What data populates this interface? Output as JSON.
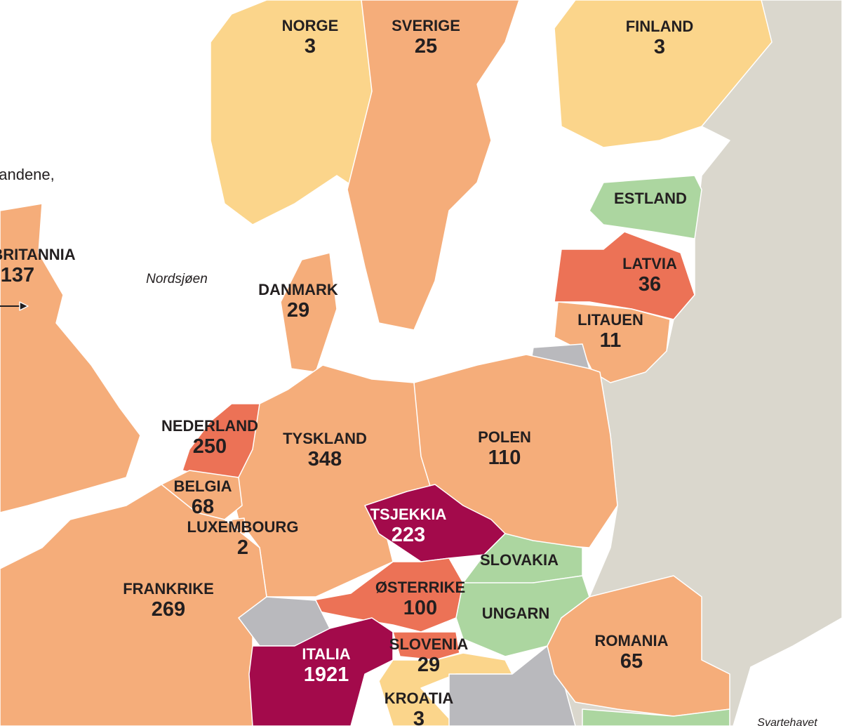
{
  "side_text": "andene,",
  "seas": {
    "north_sea": "Nordsjøen",
    "black_sea": "Svartehavet"
  },
  "countries": [
    {
      "name": "NORGE",
      "value": "3"
    },
    {
      "name": "SVERIGE",
      "value": "25"
    },
    {
      "name": "FINLAND",
      "value": "3"
    },
    {
      "name": "ESTLAND"
    },
    {
      "name": "LATVIA",
      "value": "36"
    },
    {
      "name": "LITAUEN",
      "value": "11"
    },
    {
      "name": "BRITANNIA",
      "value": "137"
    },
    {
      "name": "DANMARK",
      "value": "29"
    },
    {
      "name": "NEDERLAND",
      "value": "250"
    },
    {
      "name": "TYSKLAND",
      "value": "348"
    },
    {
      "name": "POLEN",
      "value": "110"
    },
    {
      "name": "BELGIA",
      "value": "68"
    },
    {
      "name": "LUXEMBOURG",
      "value": "2"
    },
    {
      "name": "TSJEKKIA",
      "value": "223"
    },
    {
      "name": "SLOVAKIA"
    },
    {
      "name": "ØSTERRIKE",
      "value": "100"
    },
    {
      "name": "UNGARN"
    },
    {
      "name": "FRANKRIKE",
      "value": "269"
    },
    {
      "name": "ROMANIA",
      "value": "65"
    },
    {
      "name": "ITALIA",
      "value": "1921"
    },
    {
      "name": "SLOVENIA",
      "value": "29"
    },
    {
      "name": "KROATIA",
      "value": "3"
    }
  ]
}
